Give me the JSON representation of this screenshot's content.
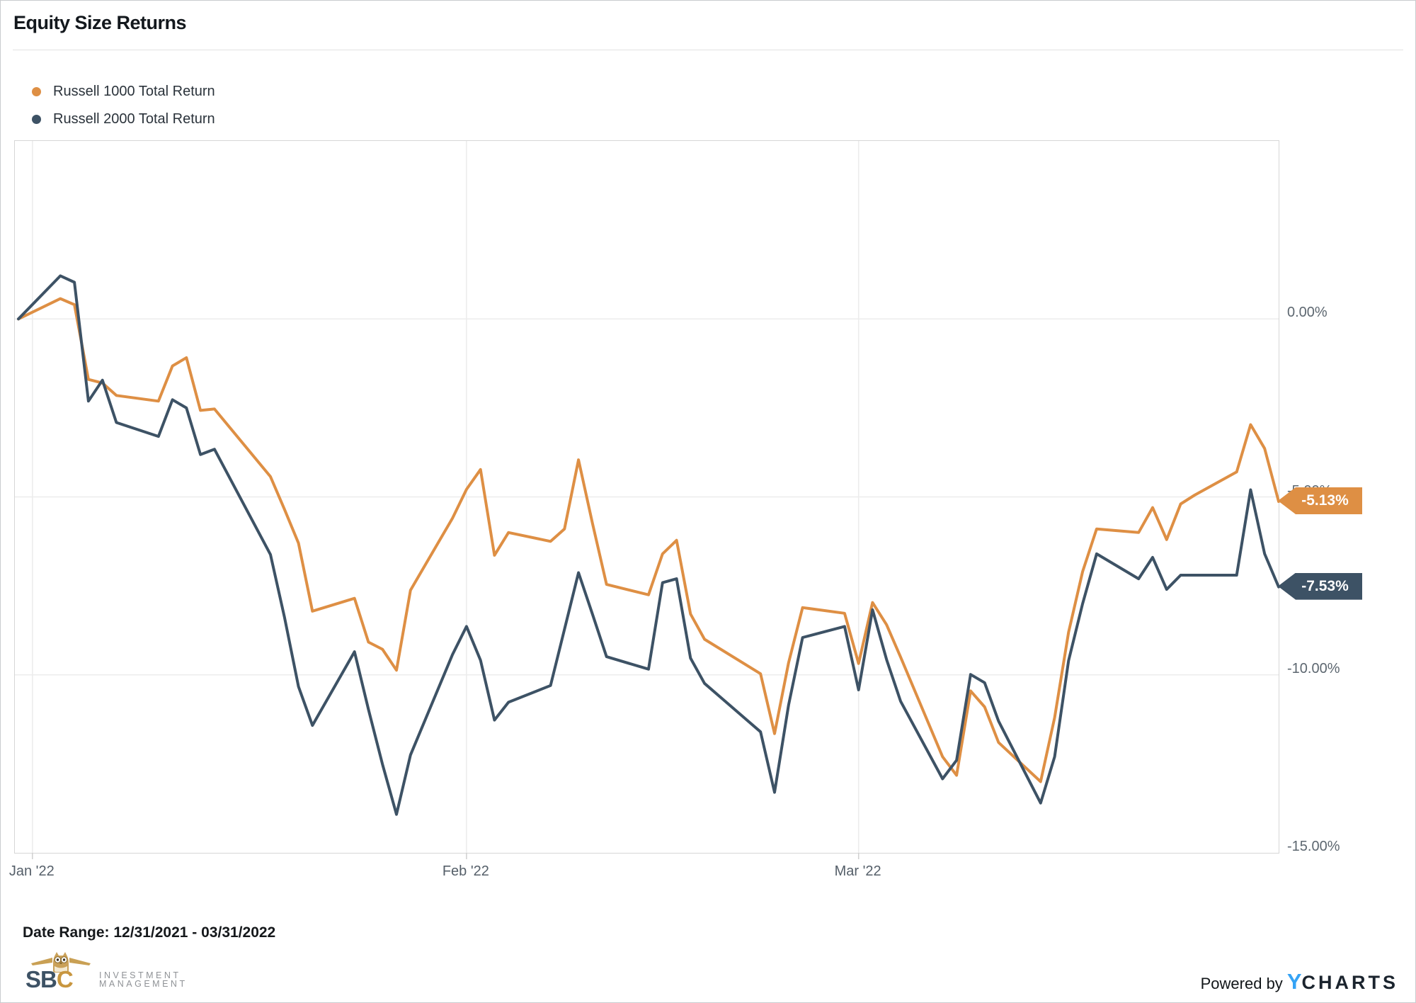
{
  "header": {
    "title": "Equity Size Returns"
  },
  "legend": {
    "series": [
      {
        "label": "Russell 1000 Total Return",
        "color": "#de8f44"
      },
      {
        "label": "Russell 2000 Total Return",
        "color": "#3d5265"
      }
    ]
  },
  "chart_data": {
    "type": "line",
    "title": "Equity Size Returns",
    "grid": true,
    "legend_position": "top-left",
    "x_axis": {
      "ticks": [
        "Jan '22",
        "Feb '22",
        "Mar '22"
      ],
      "tick_day_offsets": [
        1,
        32,
        60
      ],
      "range_days": [
        0,
        90
      ],
      "start_date": "12/31/2021",
      "end_date": "03/31/2022"
    },
    "y_axis": {
      "ticks": [
        "0.00%",
        "-5.00%",
        "-10.00%",
        "-15.00%"
      ],
      "tick_values": [
        0,
        -5,
        -10,
        -15
      ],
      "range": [
        5,
        -15
      ],
      "unit": "%"
    },
    "dates": [
      "12/31/2021",
      "01/03/2022",
      "01/04/2022",
      "01/05/2022",
      "01/06/2022",
      "01/07/2022",
      "01/10/2022",
      "01/11/2022",
      "01/12/2022",
      "01/13/2022",
      "01/14/2022",
      "01/18/2022",
      "01/19/2022",
      "01/20/2022",
      "01/21/2022",
      "01/24/2022",
      "01/25/2022",
      "01/26/2022",
      "01/27/2022",
      "01/28/2022",
      "01/31/2022",
      "02/01/2022",
      "02/02/2022",
      "02/03/2022",
      "02/04/2022",
      "02/07/2022",
      "02/08/2022",
      "02/09/2022",
      "02/10/2022",
      "02/11/2022",
      "02/14/2022",
      "02/15/2022",
      "02/16/2022",
      "02/17/2022",
      "02/18/2022",
      "02/22/2022",
      "02/23/2022",
      "02/24/2022",
      "02/25/2022",
      "02/28/2022",
      "03/01/2022",
      "03/02/2022",
      "03/03/2022",
      "03/04/2022",
      "03/07/2022",
      "03/08/2022",
      "03/09/2022",
      "03/10/2022",
      "03/11/2022",
      "03/14/2022",
      "03/15/2022",
      "03/16/2022",
      "03/17/2022",
      "03/18/2022",
      "03/21/2022",
      "03/22/2022",
      "03/23/2022",
      "03/24/2022",
      "03/25/2022",
      "03/28/2022",
      "03/29/2022",
      "03/30/2022",
      "03/31/2022"
    ],
    "day_offsets": [
      0,
      3,
      4,
      5,
      6,
      7,
      10,
      11,
      12,
      13,
      14,
      18,
      19,
      20,
      21,
      24,
      25,
      26,
      27,
      28,
      31,
      32,
      33,
      34,
      35,
      38,
      39,
      40,
      41,
      42,
      45,
      46,
      47,
      48,
      49,
      53,
      54,
      55,
      56,
      59,
      60,
      61,
      62,
      63,
      66,
      67,
      68,
      69,
      70,
      73,
      74,
      75,
      76,
      77,
      80,
      81,
      82,
      83,
      84,
      87,
      88,
      89,
      90
    ],
    "series": [
      {
        "name": "Russell 1000 Total Return",
        "color": "#de8f44",
        "end_label": "-5.13%",
        "values": [
          0.0,
          0.57,
          0.4,
          -1.7,
          -1.8,
          -2.15,
          -2.31,
          -1.32,
          -1.09,
          -2.57,
          -2.53,
          -4.43,
          -5.35,
          -6.3,
          -8.21,
          -7.85,
          -9.08,
          -9.28,
          -9.87,
          -7.62,
          -5.6,
          -4.79,
          -4.23,
          -6.64,
          -6.0,
          -6.25,
          -5.9,
          -3.96,
          -5.75,
          -7.46,
          -7.75,
          -6.6,
          -6.22,
          -8.29,
          -9.0,
          -9.97,
          -11.65,
          -9.66,
          -8.11,
          -8.27,
          -9.68,
          -7.97,
          -8.59,
          -9.5,
          -12.3,
          -12.82,
          -10.45,
          -10.9,
          -11.9,
          -13.0,
          -11.2,
          -8.8,
          -7.1,
          -5.9,
          -6.0,
          -5.3,
          -6.2,
          -5.2,
          -4.95,
          -4.3,
          -2.97,
          -3.64,
          -5.13
        ]
      },
      {
        "name": "Russell 2000 Total Return",
        "color": "#3d5265",
        "end_label": "-7.53%",
        "values": [
          0.0,
          1.21,
          1.03,
          -2.31,
          -1.72,
          -2.91,
          -3.3,
          -2.27,
          -2.5,
          -3.81,
          -3.66,
          -6.62,
          -8.38,
          -10.33,
          -11.42,
          -9.35,
          -10.97,
          -12.51,
          -13.92,
          -12.25,
          -9.43,
          -8.64,
          -9.59,
          -11.27,
          -10.77,
          -10.3,
          -8.72,
          -7.13,
          -8.3,
          -9.49,
          -9.84,
          -7.41,
          -7.3,
          -9.53,
          -10.24,
          -11.6,
          -13.3,
          -10.85,
          -8.95,
          -8.64,
          -10.42,
          -8.17,
          -9.57,
          -10.74,
          -12.92,
          -12.4,
          -9.99,
          -10.22,
          -11.3,
          -13.6,
          -12.3,
          -9.6,
          -8.0,
          -6.6,
          -7.3,
          -6.7,
          -7.6,
          -7.2,
          -7.2,
          -7.2,
          -4.8,
          -6.6,
          -7.53
        ]
      }
    ]
  },
  "badges": [
    {
      "text": "-5.13%",
      "color": "#de8f44",
      "value": -5.13
    },
    {
      "text": "-7.53%",
      "color": "#3d5265",
      "value": -7.53
    }
  ],
  "footer": {
    "date_range": "Date Range: 12/31/2021 - 03/31/2022",
    "powered_by": "Powered by",
    "ycharts_y": "Y",
    "ycharts_rest": "CHARTS",
    "sbc": {
      "s": "S",
      "b": "B",
      "c": "C",
      "line1": "INVESTMENT",
      "line2": "MANAGEMENT"
    }
  },
  "colors": {
    "orange": "#de8f44",
    "slate": "#3d5265",
    "grid": "#ececec",
    "plot_border": "#d6d6d6",
    "axis_text": "#5d6770"
  }
}
